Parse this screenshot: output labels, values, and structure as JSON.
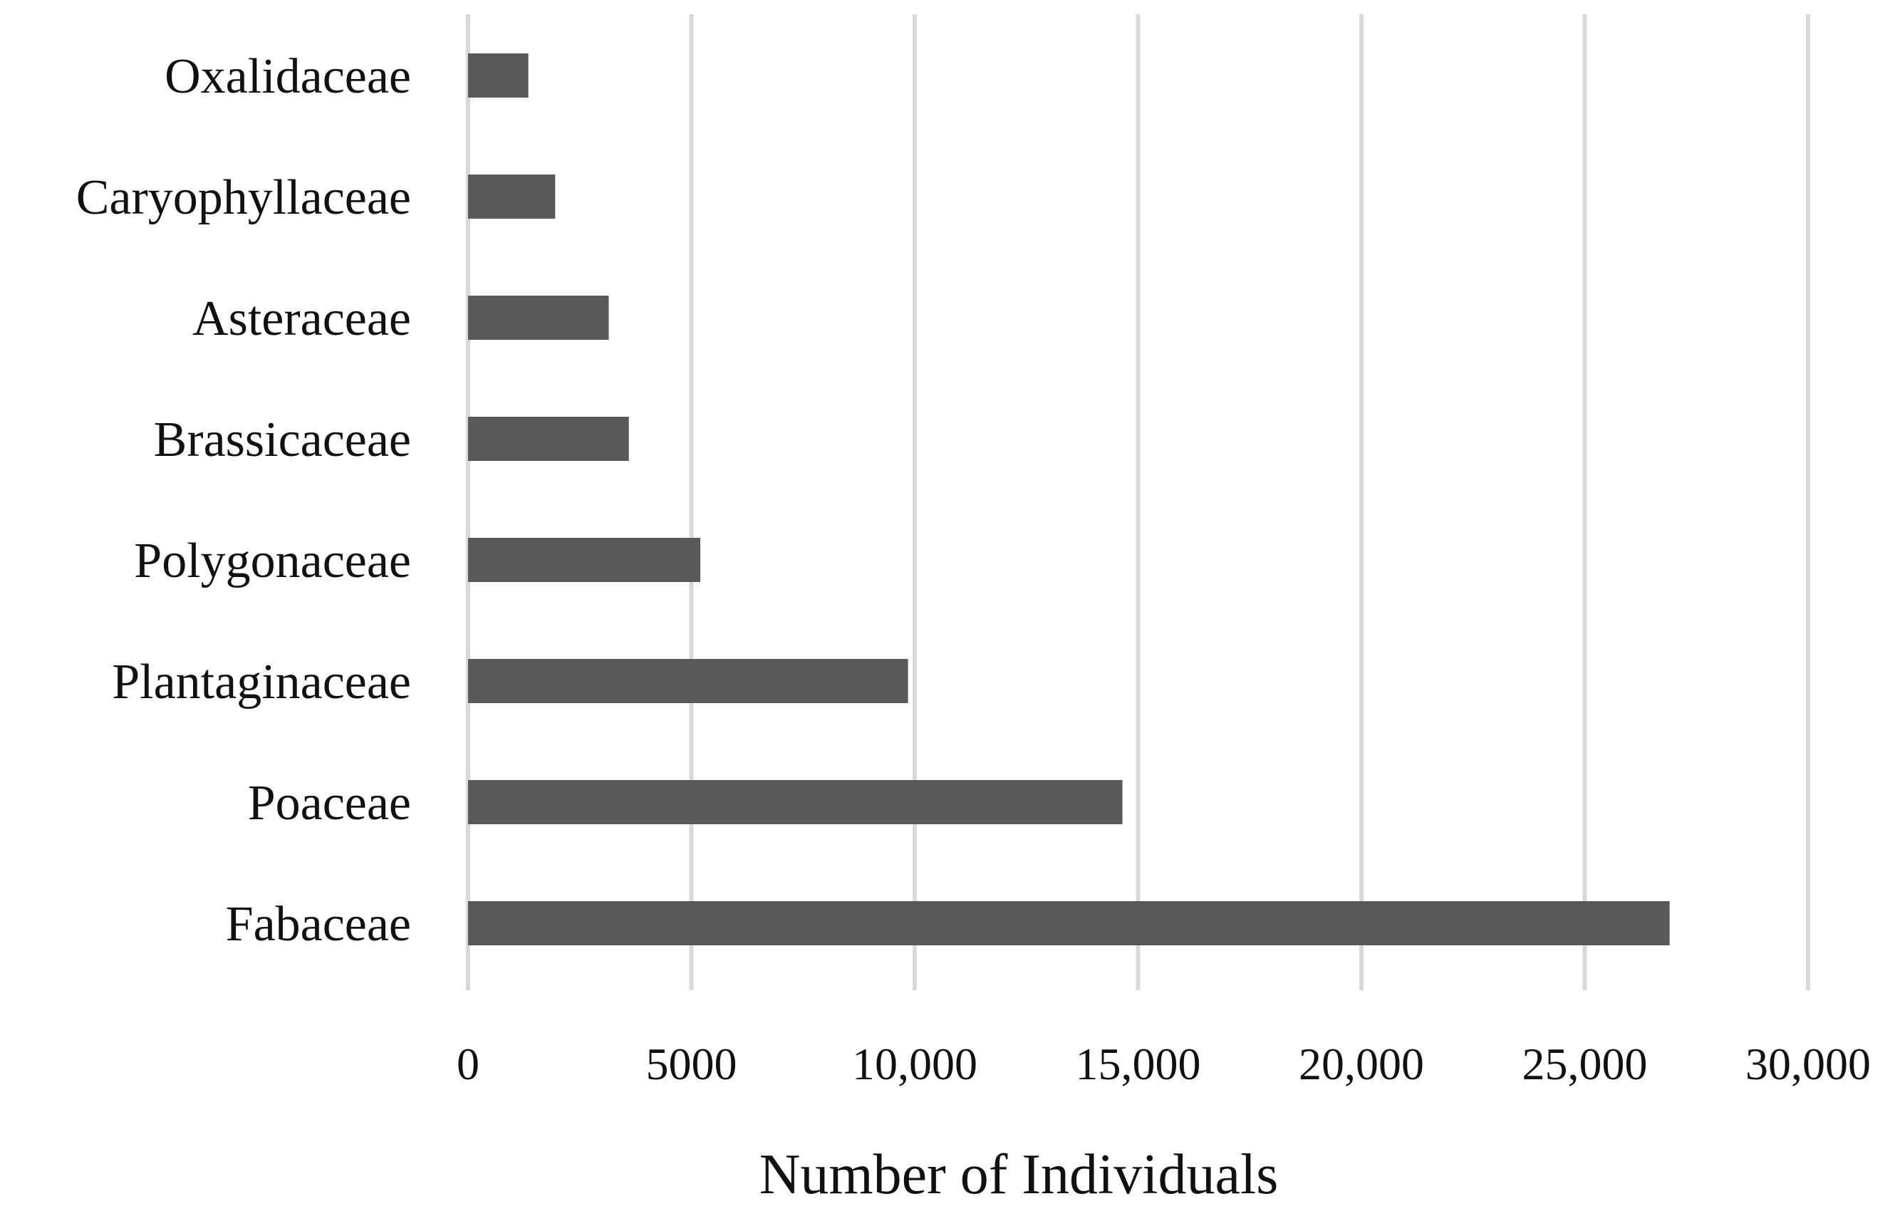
{
  "chart_data": {
    "type": "bar",
    "orientation": "horizontal",
    "categories": [
      "Oxalidaceae",
      "Caryophyllaceae",
      "Asteraceae",
      "Brassicaceae",
      "Polygonaceae",
      "Plantaginaceae",
      "Poaceae",
      "Fabaceae"
    ],
    "values": [
      1350,
      1950,
      3150,
      3600,
      5200,
      9850,
      14650,
      26900
    ],
    "xlabel": "Number of Individuals",
    "ylabel": "",
    "xlim": [
      0,
      30000
    ],
    "xticks": [
      0,
      5000,
      10000,
      15000,
      20000,
      25000,
      30000
    ],
    "xtick_labels": [
      "0",
      "5000",
      "10,000",
      "15,000",
      "20,000",
      "25,000",
      "30,000"
    ],
    "grid": "vertical",
    "legend": "none",
    "colors": {
      "bar": "#595959",
      "grid": "#d9d9d9"
    }
  }
}
